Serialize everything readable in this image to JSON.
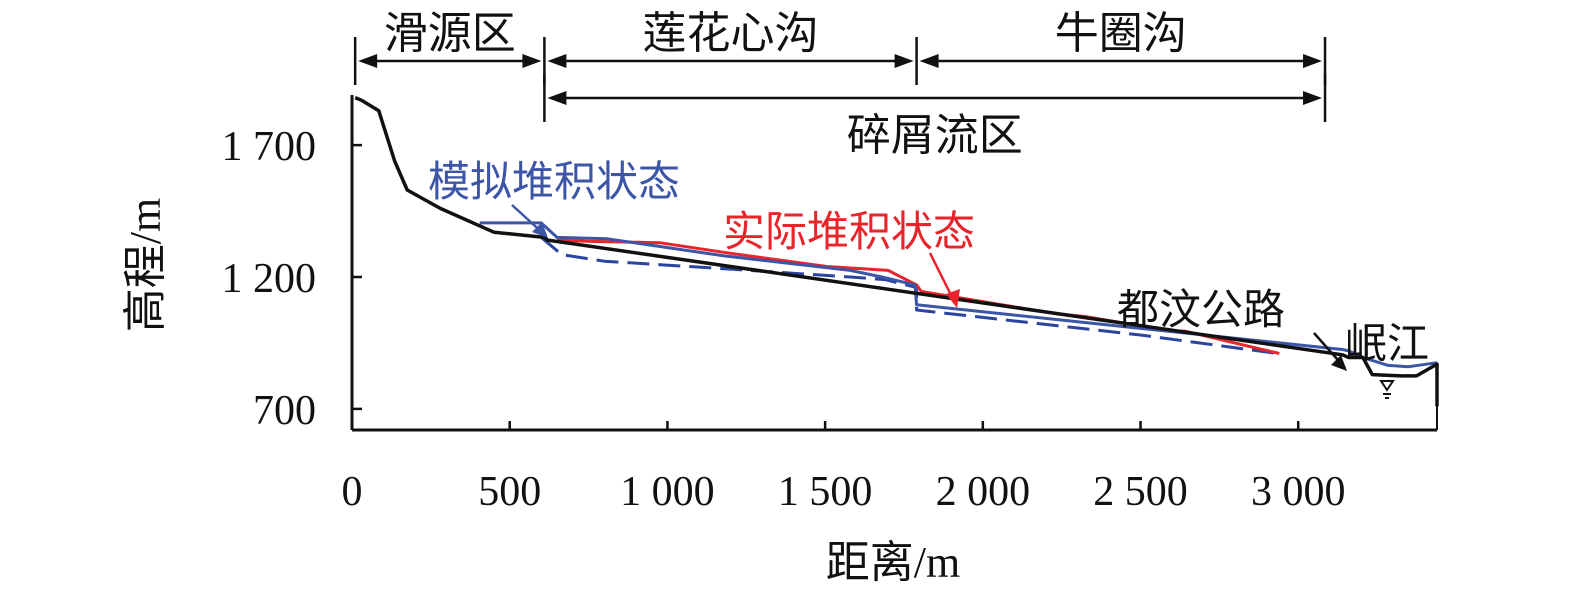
{
  "chart_data": {
    "type": "line",
    "xlabel": "距离/m",
    "ylabel": "高程/m",
    "xlim": [
      0,
      3440
    ],
    "ylim": [
      620,
      1890
    ],
    "xticks": [
      {
        "value": 0,
        "label": "0"
      },
      {
        "value": 500,
        "label": "500"
      },
      {
        "value": 1000,
        "label": "1 000"
      },
      {
        "value": 1500,
        "label": "1 500"
      },
      {
        "value": 2000,
        "label": "2 000"
      },
      {
        "value": 2500,
        "label": "2 500"
      },
      {
        "value": 3000,
        "label": "3 000"
      }
    ],
    "yticks": [
      {
        "value": 700,
        "label": "700"
      },
      {
        "value": 1200,
        "label": "1 200"
      },
      {
        "value": 1700,
        "label": "1 700"
      }
    ],
    "grid": false,
    "series": [
      {
        "key": "terrain",
        "color": "#111111",
        "style": "solid",
        "x": [
          10,
          30,
          85,
          135,
          175,
          280,
          450,
          610,
          620,
          3140,
          3160,
          3205,
          3235,
          3325,
          3375,
          3440,
          3440
        ],
        "y": [
          1880,
          1870,
          1830,
          1640,
          1530,
          1460,
          1370,
          1350,
          1340,
          905,
          895,
          895,
          830,
          825,
          825,
          870,
          710
        ]
      },
      {
        "name": "模拟堆积状态",
        "key": "simulated",
        "color": "#3c55a6",
        "style": "solid",
        "x": [
          405,
          600,
          650,
          810,
          1180,
          1580,
          1680,
          1785,
          1790,
          2500,
          3140,
          3160,
          3205,
          3285,
          3350,
          3440
        ],
        "y": [
          1405,
          1405,
          1350,
          1345,
          1280,
          1225,
          1200,
          1170,
          1095,
          1005,
          925,
          920,
          895,
          865,
          860,
          875
        ]
      },
      {
        "name": "实际堆积状态",
        "key": "actual",
        "color": "#e8252a",
        "style": "solid",
        "x": [
          650,
          760,
          975,
          1200,
          1505,
          1700,
          1790,
          1805,
          2235,
          2325,
          2600,
          2640,
          2940
        ],
        "y": [
          1340,
          1335,
          1330,
          1290,
          1240,
          1225,
          1170,
          1145,
          1060,
          1050,
          995,
          995,
          910
        ]
      },
      {
        "key": "dashed",
        "color": "#2a44a0",
        "style": "dashed",
        "x": [
          600,
          665,
          800,
          1200,
          1580,
          1690,
          1790,
          1790,
          2500,
          2935
        ],
        "y": [
          1350,
          1285,
          1260,
          1230,
          1200,
          1190,
          1160,
          1075,
          980,
          910
        ]
      }
    ],
    "regions": [
      {
        "label": "滑源区",
        "x_start": 10,
        "x_end": 610,
        "row": 1
      },
      {
        "label": "莲花心沟",
        "x_start": 610,
        "x_end": 1790,
        "row": 1
      },
      {
        "label": "牛圈沟",
        "x_start": 1790,
        "x_end": 3085,
        "row": 1
      },
      {
        "label": "碎屑流区",
        "x_start": 610,
        "x_end": 3085,
        "row": 2
      }
    ],
    "annotations": [
      {
        "text": "模拟堆积状态",
        "color": "#3c55a6",
        "ref_series": "simulated"
      },
      {
        "text": "实际堆积状态",
        "color": "#e8252a",
        "ref_series": "actual"
      },
      {
        "text": "都汶公路",
        "color": "#111111"
      },
      {
        "text": "岷江",
        "color": "#111111"
      }
    ]
  }
}
